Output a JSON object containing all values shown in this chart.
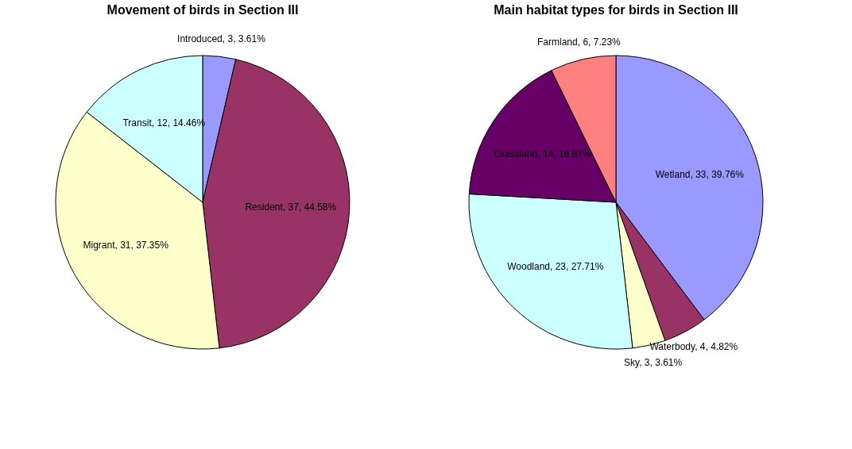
{
  "chart_data": [
    {
      "type": "pie",
      "title": "Movement of birds in Section III",
      "categories": [
        "Introduced",
        "Resident",
        "Migrant",
        "Transit"
      ],
      "values": [
        3,
        37,
        31,
        12
      ],
      "colors": [
        "#9999ff",
        "#993366",
        "#ffffcc",
        "#ccffff"
      ],
      "value_labels": [
        "3, 3.61%",
        "37, 44.58%",
        "31, 37.35%",
        "12, 14.46%"
      ],
      "legend": false
    },
    {
      "type": "pie",
      "title": "Main habitat types for birds in Section III",
      "categories": [
        "Wetland",
        "Waterbody",
        "Sky",
        "Woodland",
        "Grassland",
        "Farmland"
      ],
      "values": [
        33,
        4,
        3,
        23,
        14,
        6
      ],
      "colors": [
        "#9999ff",
        "#993366",
        "#ffffcc",
        "#ccffff",
        "#660066",
        "#ff8080"
      ],
      "value_labels": [
        "33, 39.76%",
        "4, 4.82%",
        "3, 3.61%",
        "23, 27.71%",
        "14, 16.87%",
        "6, 7.23%"
      ],
      "legend": false
    }
  ]
}
